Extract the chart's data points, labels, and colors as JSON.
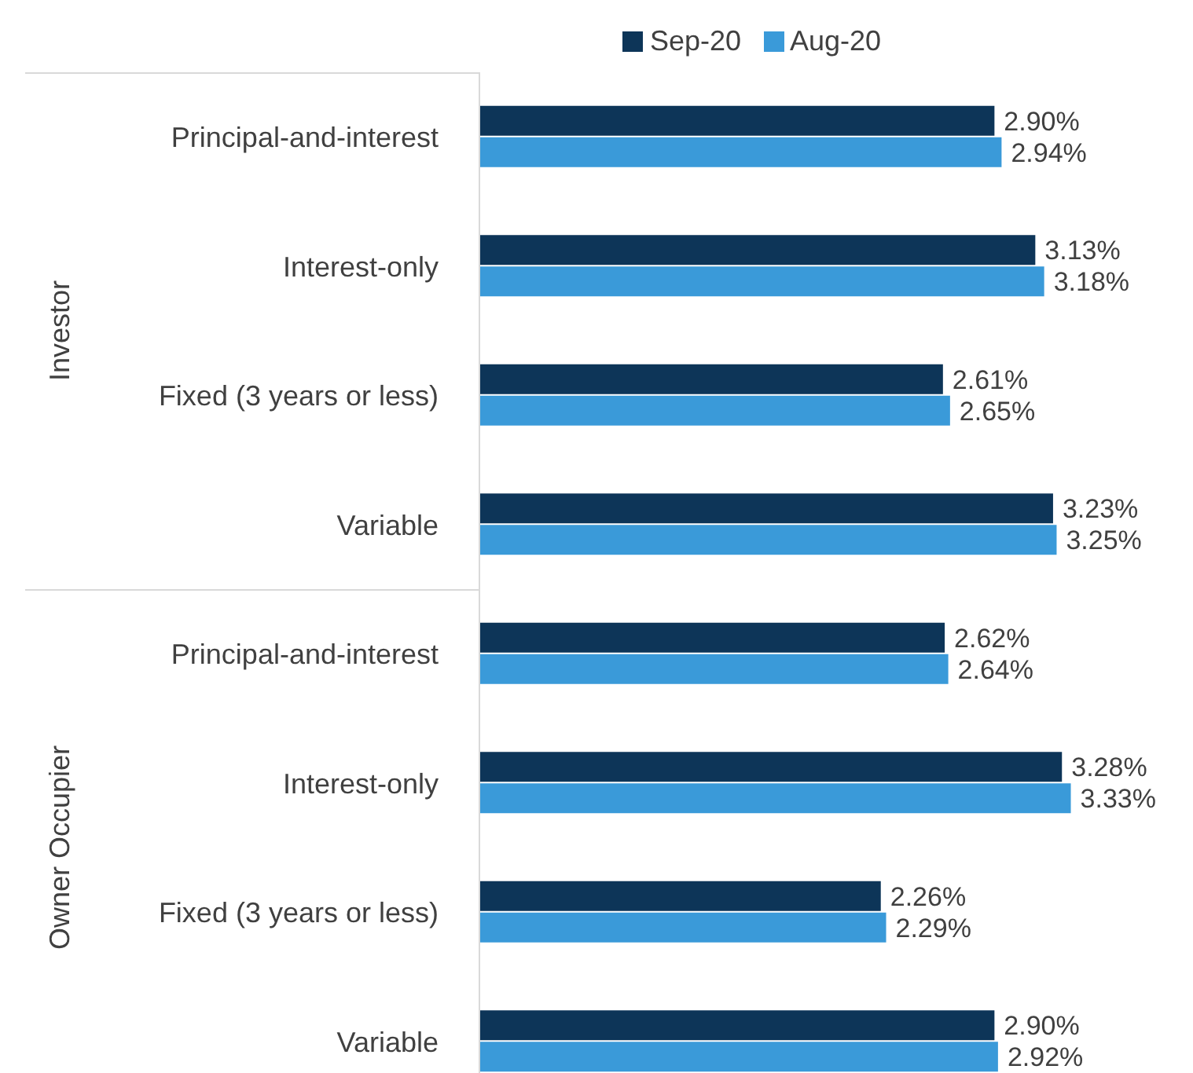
{
  "chart_data": {
    "type": "bar",
    "orientation": "horizontal",
    "categories": [
      "Principal-and-interest",
      "Interest-only",
      "Fixed (3 years or less)",
      "Variable",
      "Principal-and-interest",
      "Interest-only",
      "Fixed (3 years or less)",
      "Variable"
    ],
    "series": [
      {
        "name": "Sep-20",
        "color": "#0d3558",
        "values": [
          2.9,
          3.13,
          2.61,
          3.23,
          2.62,
          3.28,
          2.26,
          2.9
        ],
        "value_labels": [
          "2.90%",
          "3.13%",
          "2.61%",
          "3.23%",
          "2.62%",
          "3.28%",
          "2.26%",
          "2.90%"
        ]
      },
      {
        "name": "Aug-20",
        "color": "#3a9ad9",
        "values": [
          2.94,
          3.18,
          2.65,
          3.25,
          2.64,
          3.33,
          2.29,
          2.92
        ],
        "value_labels": [
          "2.94%",
          "3.18%",
          "2.65%",
          "3.25%",
          "2.64%",
          "3.33%",
          "2.29%",
          "2.92%"
        ]
      }
    ],
    "annotations": [
      "Investor",
      "Owner Occupier"
    ],
    "legend": "top"
  }
}
